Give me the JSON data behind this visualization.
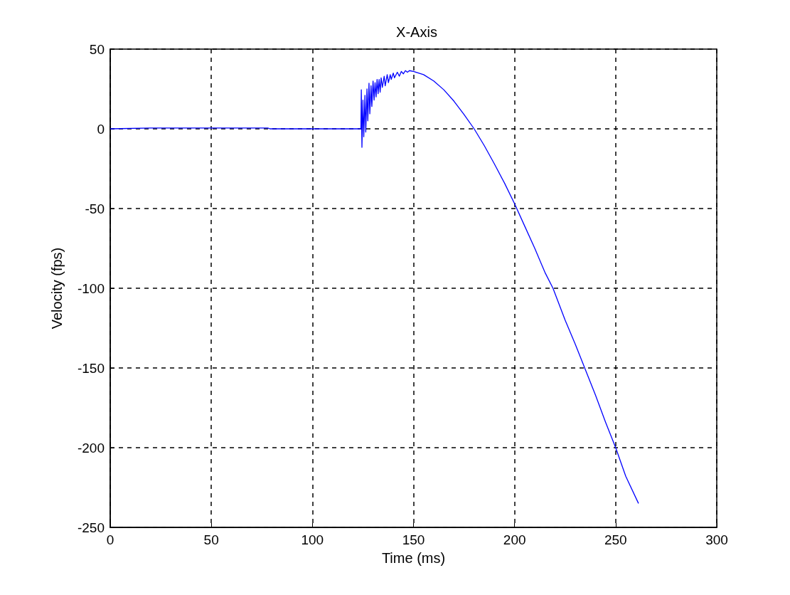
{
  "chart_data": {
    "type": "line",
    "title": "X-Axis",
    "xlabel": "Time (ms)",
    "ylabel": "Velocity (fps)",
    "xlim": [
      0,
      300
    ],
    "xticks": [
      0,
      50,
      100,
      150,
      200,
      250,
      300
    ],
    "ylim": [
      -250,
      50
    ],
    "yticks": [
      -250,
      -200,
      -150,
      -100,
      -50,
      0,
      50
    ],
    "grid": true,
    "line_style": "solid",
    "marker": "none",
    "series": [
      {
        "color": "#0000ff",
        "x": [
          0,
          20,
          78,
          79,
          124,
          124.2,
          124.5,
          125,
          125.4,
          126,
          126.4,
          127,
          127.4,
          128,
          128.4,
          129,
          129.4,
          130,
          130.5,
          131,
          131.5,
          132,
          132.5,
          133,
          133.5,
          134,
          134.6,
          135.5,
          136,
          137,
          137.6,
          138.5,
          139,
          140,
          140.6,
          142,
          143,
          144,
          145,
          146,
          147,
          148,
          150,
          155,
          160,
          165,
          170,
          175,
          180,
          185,
          190,
          195,
          200,
          205,
          210,
          215,
          219,
          225,
          230,
          235,
          240,
          245,
          250,
          255,
          261.3
        ],
        "values": [
          0,
          0.5,
          0.5,
          0,
          0,
          24.5,
          -11.6,
          18,
          -5,
          21,
          -2,
          25,
          5,
          28.6,
          9.4,
          27,
          14,
          30,
          18,
          29,
          20,
          31,
          22,
          31,
          23,
          32,
          26,
          33,
          27,
          34,
          29,
          34,
          31,
          35,
          32,
          35.5,
          33,
          36,
          34.5,
          36.5,
          35.5,
          36.5,
          36,
          34,
          30,
          24.5,
          17.4,
          9,
          0,
          -10.5,
          -22,
          -34,
          -47,
          -61,
          -75,
          -90,
          -100,
          -120,
          -135,
          -151,
          -167,
          -184,
          -200,
          -218,
          -235
        ]
      }
    ]
  }
}
